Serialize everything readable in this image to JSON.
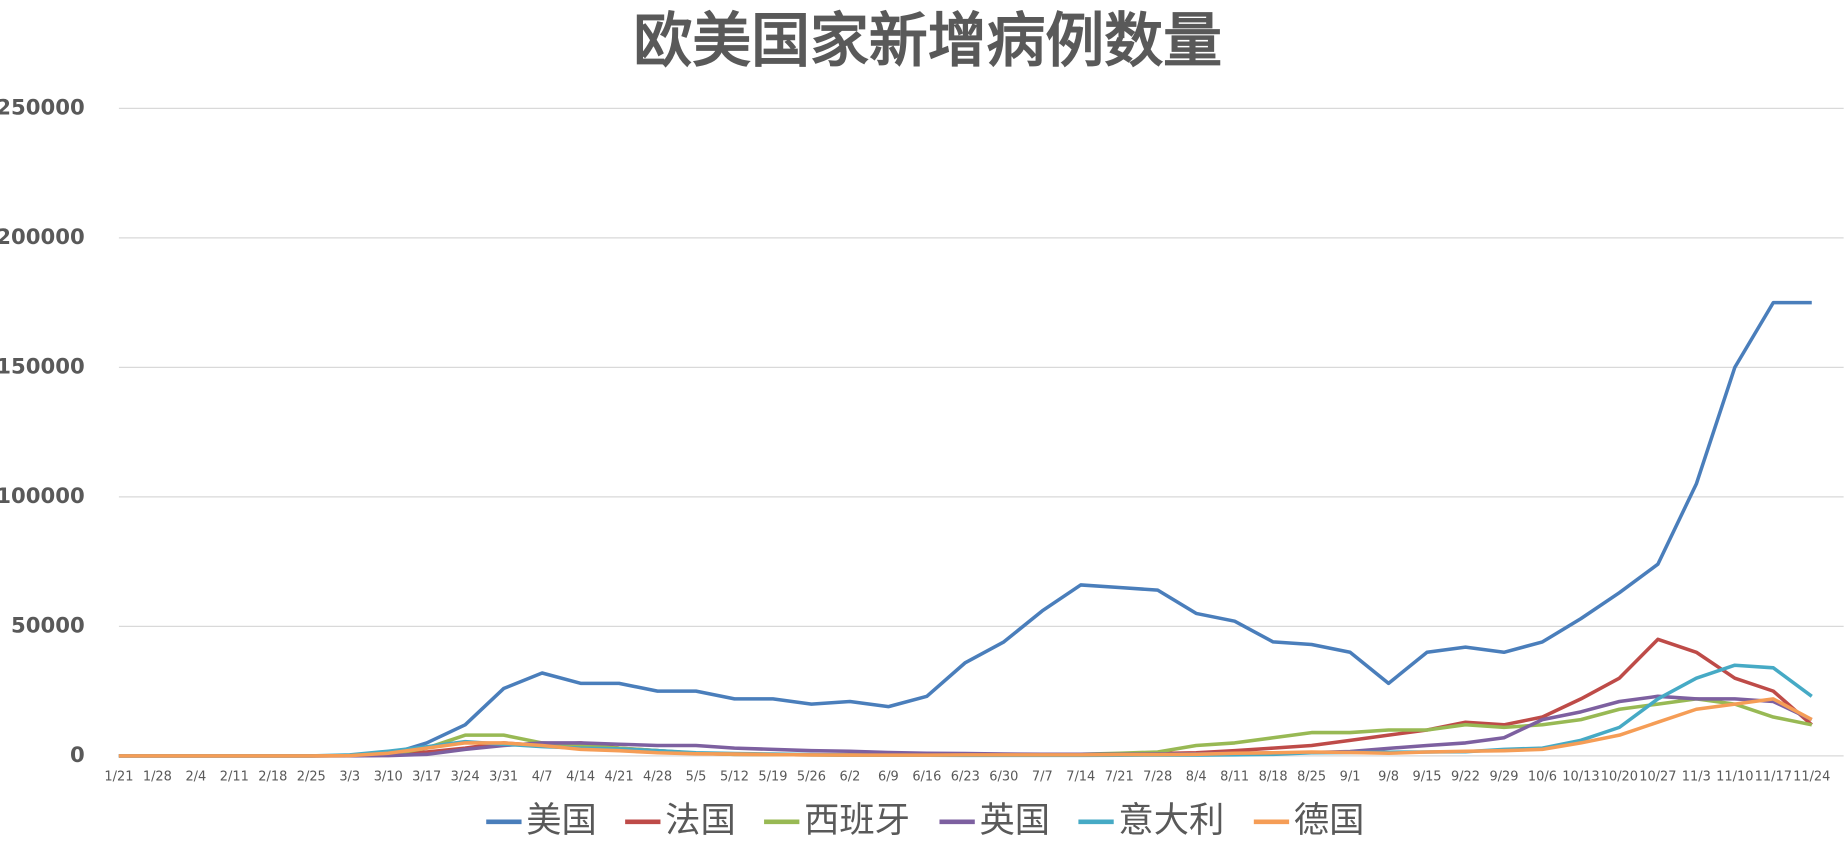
{
  "chart_data": {
    "type": "line",
    "title": "欧美国家新增病例数量",
    "categories": [
      "1/21",
      "1/28",
      "2/4",
      "2/11",
      "2/18",
      "2/25",
      "3/3",
      "3/10",
      "3/17",
      "3/24",
      "3/31",
      "4/7",
      "4/14",
      "4/21",
      "4/28",
      "5/5",
      "5/12",
      "5/19",
      "5/26",
      "6/2",
      "6/9",
      "6/16",
      "6/23",
      "6/30",
      "7/7",
      "7/14",
      "7/21",
      "7/28",
      "8/4",
      "8/11",
      "8/18",
      "8/25",
      "9/1",
      "9/8",
      "9/15",
      "9/22",
      "9/29",
      "10/6",
      "10/13",
      "10/20",
      "10/27",
      "11/3",
      "11/10",
      "11/17",
      "11/24"
    ],
    "series": [
      {
        "name": "美国",
        "color": "#4a7ebb",
        "values": [
          0,
          0,
          0,
          0,
          0,
          0,
          100,
          400,
          5000,
          12000,
          26000,
          32000,
          28000,
          28000,
          25000,
          25000,
          22000,
          22000,
          20000,
          21000,
          19000,
          23000,
          36000,
          44000,
          56000,
          66000,
          65000,
          64000,
          55000,
          52000,
          44000,
          43000,
          40000,
          28000,
          40000,
          42000,
          40000,
          44000,
          53000,
          63000,
          74000,
          105000,
          150000,
          175000,
          175000
        ]
      },
      {
        "name": "法国",
        "color": "#be4b48",
        "values": [
          0,
          0,
          0,
          0,
          0,
          0,
          50,
          300,
          1500,
          3000,
          5000,
          4000,
          5000,
          3000,
          2000,
          1000,
          600,
          500,
          400,
          400,
          400,
          400,
          400,
          500,
          500,
          600,
          700,
          900,
          1200,
          2000,
          3000,
          4000,
          6000,
          8000,
          10000,
          13000,
          12000,
          15000,
          22000,
          30000,
          45000,
          40000,
          30000,
          25000,
          12000
        ]
      },
      {
        "name": "西班牙",
        "color": "#98b954",
        "values": [
          0,
          0,
          0,
          0,
          0,
          0,
          50,
          500,
          3000,
          8000,
          8000,
          5000,
          4000,
          3000,
          2000,
          1000,
          600,
          500,
          400,
          300,
          300,
          300,
          300,
          400,
          500,
          600,
          1000,
          1500,
          4000,
          5000,
          7000,
          9000,
          9000,
          10000,
          10000,
          12000,
          11000,
          12000,
          14000,
          18000,
          20000,
          22000,
          20000,
          15000,
          12000
        ]
      },
      {
        "name": "英国",
        "color": "#7d60a0",
        "values": [
          0,
          0,
          0,
          0,
          0,
          0,
          20,
          100,
          600,
          2500,
          4000,
          5000,
          5000,
          4500,
          4000,
          4000,
          3000,
          2500,
          2000,
          1800,
          1300,
          1000,
          900,
          700,
          600,
          600,
          600,
          700,
          800,
          1000,
          1100,
          1300,
          1700,
          2900,
          4000,
          5000,
          7000,
          14000,
          17000,
          21000,
          23000,
          22000,
          22000,
          21000,
          14000
        ]
      },
      {
        "name": "意大利",
        "color": "#46aac5",
        "values": [
          0,
          0,
          0,
          0,
          0,
          0,
          400,
          1800,
          3500,
          5500,
          4500,
          3600,
          3000,
          2700,
          2000,
          1200,
          900,
          700,
          500,
          300,
          250,
          250,
          200,
          200,
          200,
          200,
          250,
          300,
          300,
          400,
          600,
          1200,
          1300,
          1400,
          1500,
          1600,
          2500,
          3000,
          6000,
          11000,
          22000,
          30000,
          35000,
          34000,
          23000
        ]
      },
      {
        "name": "德国",
        "color": "#f59d56",
        "values": [
          0,
          0,
          0,
          0,
          0,
          0,
          100,
          1000,
          3000,
          5000,
          5000,
          4000,
          2500,
          2000,
          1200,
          800,
          700,
          500,
          400,
          300,
          300,
          300,
          400,
          400,
          400,
          400,
          500,
          500,
          600,
          1000,
          1200,
          1500,
          1300,
          1000,
          1500,
          1800,
          2000,
          2500,
          5000,
          8000,
          13000,
          18000,
          20000,
          22000,
          14000
        ]
      }
    ],
    "ylim": [
      0,
      250000
    ],
    "yticks": [
      0,
      50000,
      100000,
      150000,
      200000,
      250000
    ],
    "grid": true,
    "legend": "bottom"
  }
}
